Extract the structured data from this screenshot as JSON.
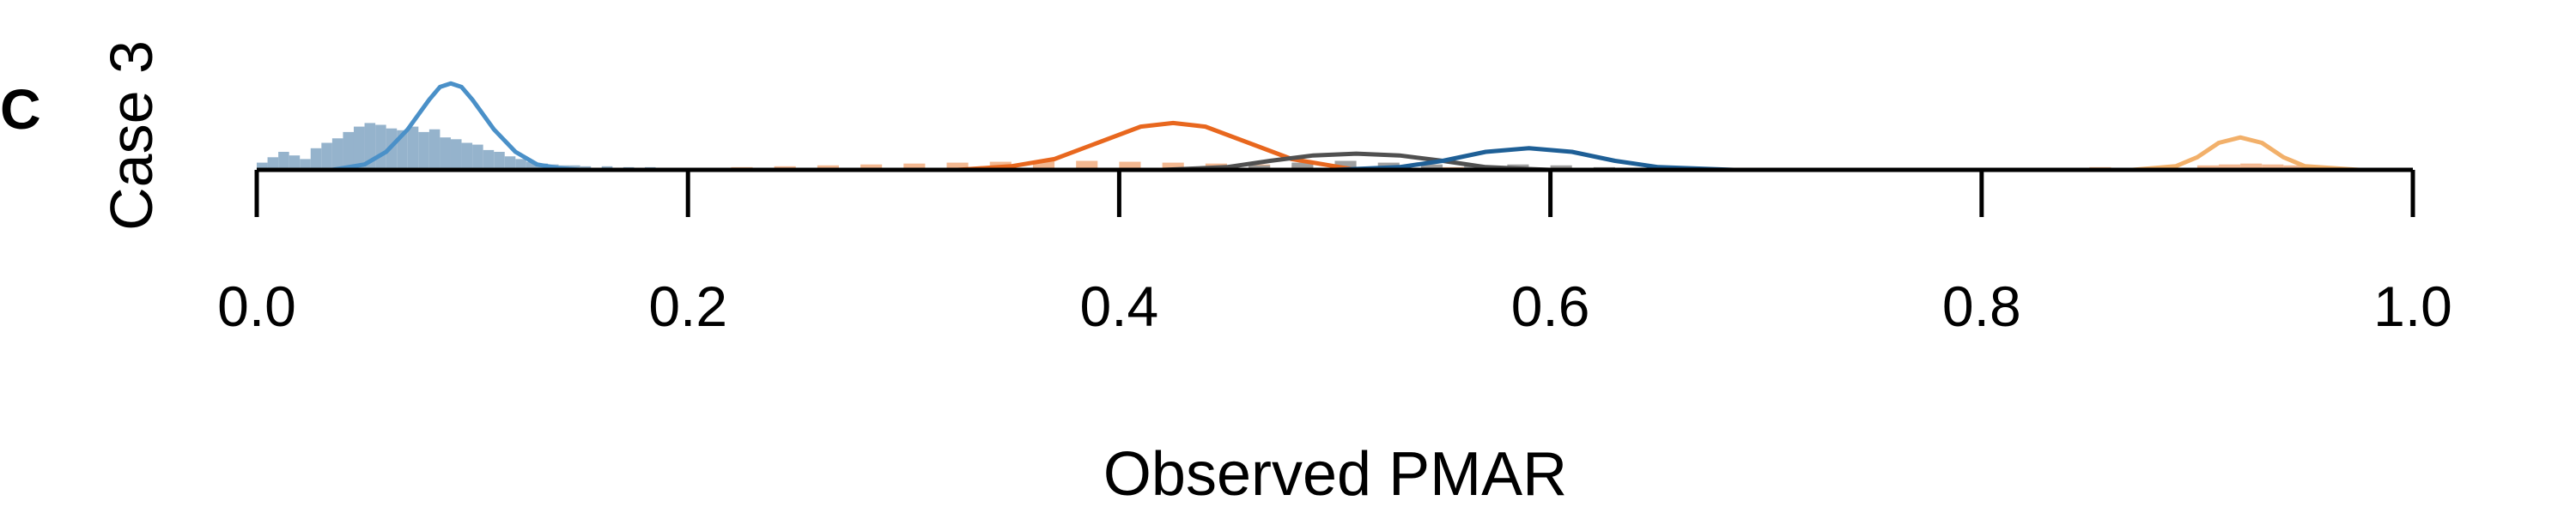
{
  "panel_letter": "C",
  "chart_data": {
    "type": "histogram_density",
    "title": "",
    "xlabel": "Observed PMAR",
    "ylabel": "Case 3",
    "xlim": [
      0.0,
      1.0
    ],
    "xticks": [
      "0.0",
      "0.2",
      "0.4",
      "0.6",
      "0.8",
      "1.0"
    ],
    "grid": false,
    "legend": "none",
    "histograms": [
      {
        "color": "#8fafc9",
        "bin_width": 0.005,
        "bin_starts": [
          0.0,
          0.005,
          0.01,
          0.015,
          0.02,
          0.025,
          0.03,
          0.035,
          0.04,
          0.045,
          0.05,
          0.055,
          0.06,
          0.065,
          0.07,
          0.075,
          0.08,
          0.085,
          0.09,
          0.095,
          0.1,
          0.105,
          0.11,
          0.115,
          0.12,
          0.125,
          0.13,
          0.135,
          0.14,
          0.145,
          0.15,
          0.16,
          0.17,
          0.18,
          0.2,
          0.22,
          0.25
        ],
        "heights": [
          0.08,
          0.14,
          0.2,
          0.16,
          0.12,
          0.24,
          0.3,
          0.35,
          0.42,
          0.48,
          0.52,
          0.5,
          0.46,
          0.44,
          0.48,
          0.42,
          0.45,
          0.36,
          0.34,
          0.3,
          0.28,
          0.22,
          0.2,
          0.15,
          0.12,
          0.09,
          0.07,
          0.06,
          0.05,
          0.05,
          0.04,
          0.04,
          0.03,
          0.03,
          0.02,
          0.02,
          0.01
        ]
      },
      {
        "color": "#f2b48b",
        "bin_width": 0.01,
        "bin_starts": [
          0.2,
          0.22,
          0.24,
          0.26,
          0.28,
          0.3,
          0.32,
          0.34,
          0.36,
          0.38,
          0.4,
          0.42,
          0.44,
          0.46,
          0.48,
          0.5,
          0.55,
          0.6,
          0.7,
          0.8,
          0.85,
          0.88,
          0.9,
          0.91,
          0.92,
          0.93,
          0.94,
          0.95,
          0.97
        ],
        "heights": [
          0.02,
          0.03,
          0.04,
          0.05,
          0.06,
          0.07,
          0.08,
          0.09,
          0.1,
          0.1,
          0.09,
          0.08,
          0.07,
          0.06,
          0.05,
          0.04,
          0.03,
          0.03,
          0.02,
          0.02,
          0.03,
          0.04,
          0.05,
          0.06,
          0.07,
          0.06,
          0.05,
          0.04,
          0.02
        ]
      },
      {
        "color": "#9a9a9a",
        "bin_width": 0.01,
        "bin_starts": [
          0.46,
          0.48,
          0.5,
          0.52,
          0.54,
          0.56,
          0.58,
          0.6,
          0.62
        ],
        "heights": [
          0.05,
          0.08,
          0.1,
          0.08,
          0.06,
          0.05,
          0.06,
          0.05,
          0.03
        ]
      }
    ],
    "density_curves": [
      {
        "color": "#4a90c8",
        "x": [
          0.035,
          0.05,
          0.06,
          0.07,
          0.08,
          0.085,
          0.09,
          0.095,
          0.1,
          0.11,
          0.12,
          0.13,
          0.14,
          0.15
        ],
        "y": [
          0.0,
          0.06,
          0.2,
          0.45,
          0.78,
          0.92,
          0.96,
          0.92,
          0.78,
          0.45,
          0.2,
          0.06,
          0.02,
          0.0
        ]
      },
      {
        "color": "#e8671e",
        "x": [
          0.325,
          0.35,
          0.37,
          0.39,
          0.41,
          0.425,
          0.44,
          0.46,
          0.48,
          0.5,
          0.51
        ],
        "y": [
          0.0,
          0.04,
          0.12,
          0.3,
          0.48,
          0.52,
          0.48,
          0.3,
          0.12,
          0.04,
          0.0
        ]
      },
      {
        "color": "#505050",
        "x": [
          0.42,
          0.45,
          0.47,
          0.49,
          0.51,
          0.53,
          0.55,
          0.57,
          0.6
        ],
        "y": [
          0.0,
          0.03,
          0.1,
          0.16,
          0.18,
          0.16,
          0.1,
          0.03,
          0.0
        ]
      },
      {
        "color": "#1e5f96",
        "x": [
          0.5,
          0.53,
          0.55,
          0.57,
          0.59,
          0.61,
          0.63,
          0.65,
          0.685
        ],
        "y": [
          0.0,
          0.03,
          0.1,
          0.2,
          0.24,
          0.2,
          0.1,
          0.03,
          0.0
        ]
      },
      {
        "color": "#f2b06a",
        "x": [
          0.87,
          0.89,
          0.9,
          0.91,
          0.92,
          0.93,
          0.94,
          0.95,
          0.975
        ],
        "y": [
          0.0,
          0.04,
          0.14,
          0.3,
          0.36,
          0.3,
          0.14,
          0.04,
          0.0
        ]
      }
    ]
  }
}
